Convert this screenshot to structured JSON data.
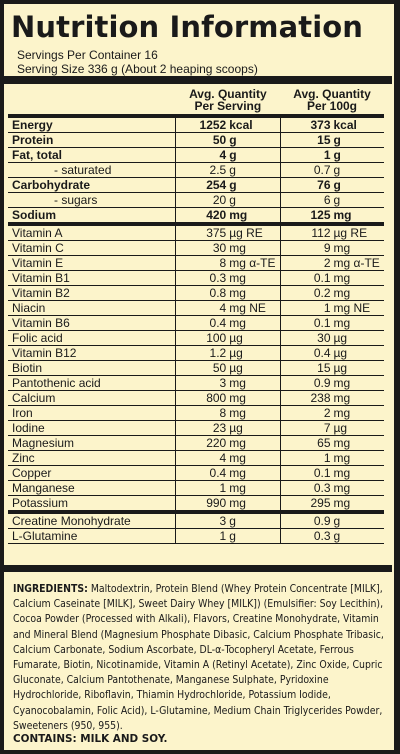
{
  "title": "Nutrition Information",
  "servings_per_container": "Servings Per Container 16",
  "serving_size": "Serving Size 336 g (About 2 heaping scoops)",
  "columns": {
    "per_serving_l1": "Avg. Quantity",
    "per_serving_l2": "Per Serving",
    "per_100g_l1": "Avg. Quantity",
    "per_100g_l2": "Per 100g"
  },
  "rows": [
    {
      "name": "Energy",
      "s_val": "1252",
      "s_unit": "kcal",
      "h_val": "373",
      "h_unit": "kcal",
      "bold": true,
      "sub": false,
      "end": false
    },
    {
      "name": "Protein",
      "s_val": "50",
      "s_unit": "g",
      "h_val": "15",
      "h_unit": "g",
      "bold": true,
      "sub": false,
      "end": false
    },
    {
      "name": "Fat, total",
      "s_val": "4",
      "s_unit": "g",
      "h_val": "1",
      "h_unit": "g",
      "bold": true,
      "sub": false,
      "end": false
    },
    {
      "name": "- saturated",
      "s_val": "2.5",
      "s_unit": "g",
      "h_val": "0.7",
      "h_unit": "g",
      "bold": false,
      "sub": true,
      "end": false
    },
    {
      "name": "Carbohydrate",
      "s_val": "254",
      "s_unit": "g",
      "h_val": "76",
      "h_unit": "g",
      "bold": true,
      "sub": false,
      "end": false
    },
    {
      "name": "- sugars",
      "s_val": "20",
      "s_unit": "g",
      "h_val": "6",
      "h_unit": "g",
      "bold": false,
      "sub": true,
      "end": false
    },
    {
      "name": "Sodium",
      "s_val": "420",
      "s_unit": "mg",
      "h_val": "125",
      "h_unit": "mg",
      "bold": true,
      "sub": false,
      "end": true
    },
    {
      "name": "Vitamin A",
      "s_val": "375",
      "s_unit": "µg RE",
      "h_val": "112",
      "h_unit": "µg RE",
      "bold": false,
      "sub": false,
      "end": false
    },
    {
      "name": "Vitamin C",
      "s_val": "30",
      "s_unit": "mg",
      "h_val": "9",
      "h_unit": "mg",
      "bold": false,
      "sub": false,
      "end": false
    },
    {
      "name": "Vitamin E",
      "s_val": "8",
      "s_unit": "mg α-TE",
      "h_val": "2",
      "h_unit": "mg α-TE",
      "bold": false,
      "sub": false,
      "end": false
    },
    {
      "name": "Vitamin B1",
      "s_val": "0.3",
      "s_unit": "mg",
      "h_val": "0.1",
      "h_unit": "mg",
      "bold": false,
      "sub": false,
      "end": false
    },
    {
      "name": "Vitamin B2",
      "s_val": "0.8",
      "s_unit": "mg",
      "h_val": "0.2",
      "h_unit": "mg",
      "bold": false,
      "sub": false,
      "end": false
    },
    {
      "name": "Niacin",
      "s_val": "4",
      "s_unit": "mg NE",
      "h_val": "1",
      "h_unit": "mg NE",
      "bold": false,
      "sub": false,
      "end": false
    },
    {
      "name": "Vitamin B6",
      "s_val": "0.4",
      "s_unit": "mg",
      "h_val": "0.1",
      "h_unit": "mg",
      "bold": false,
      "sub": false,
      "end": false
    },
    {
      "name": "Folic acid",
      "s_val": "100",
      "s_unit": "µg",
      "h_val": "30",
      "h_unit": "µg",
      "bold": false,
      "sub": false,
      "end": false
    },
    {
      "name": "Vitamin B12",
      "s_val": "1.2",
      "s_unit": "µg",
      "h_val": "0.4",
      "h_unit": "µg",
      "bold": false,
      "sub": false,
      "end": false
    },
    {
      "name": "Biotin",
      "s_val": "50",
      "s_unit": "µg",
      "h_val": "15",
      "h_unit": "µg",
      "bold": false,
      "sub": false,
      "end": false
    },
    {
      "name": "Pantothenic acid",
      "s_val": "3",
      "s_unit": "mg",
      "h_val": "0.9",
      "h_unit": "mg",
      "bold": false,
      "sub": false,
      "end": false
    },
    {
      "name": "Calcium",
      "s_val": "800",
      "s_unit": "mg",
      "h_val": "238",
      "h_unit": "mg",
      "bold": false,
      "sub": false,
      "end": false
    },
    {
      "name": "Iron",
      "s_val": "8",
      "s_unit": "mg",
      "h_val": "2",
      "h_unit": "mg",
      "bold": false,
      "sub": false,
      "end": false
    },
    {
      "name": "Iodine",
      "s_val": "23",
      "s_unit": "µg",
      "h_val": "7",
      "h_unit": "µg",
      "bold": false,
      "sub": false,
      "end": false
    },
    {
      "name": "Magnesium",
      "s_val": "220",
      "s_unit": "mg",
      "h_val": "65",
      "h_unit": "mg",
      "bold": false,
      "sub": false,
      "end": false
    },
    {
      "name": "Zinc",
      "s_val": "4",
      "s_unit": "mg",
      "h_val": "1",
      "h_unit": "mg",
      "bold": false,
      "sub": false,
      "end": false
    },
    {
      "name": "Copper",
      "s_val": "0.4",
      "s_unit": "mg",
      "h_val": "0.1",
      "h_unit": "mg",
      "bold": false,
      "sub": false,
      "end": false
    },
    {
      "name": "Manganese",
      "s_val": "1",
      "s_unit": "mg",
      "h_val": "0.3",
      "h_unit": "mg",
      "bold": false,
      "sub": false,
      "end": false
    },
    {
      "name": "Potassium",
      "s_val": "990",
      "s_unit": "mg",
      "h_val": "295",
      "h_unit": "mg",
      "bold": false,
      "sub": false,
      "end": true
    },
    {
      "name": "Creatine Monohydrate",
      "s_val": "3",
      "s_unit": "g",
      "h_val": "0.9",
      "h_unit": "g",
      "bold": false,
      "sub": false,
      "end": false
    },
    {
      "name": "L-Glutamine",
      "s_val": "1",
      "s_unit": "g",
      "h_val": "0.3",
      "h_unit": "g",
      "bold": false,
      "sub": false,
      "end": false
    }
  ],
  "ingredients_label": "INGREDIENTS:",
  "ingredients_text": "Maltodextrin, Protein Blend (Whey Protein Concentrate [MILK], Calcium Caseinate [MILK], Sweet Dairy Whey [MILK]) (Emulsifier: Soy Lecithin), Cocoa Powder (Processed with Alkali), Flavors, Creatine Monohydrate, Vitamin and Mineral Blend (Magnesium Phosphate Dibasic, Calcium Phosphate Tribasic, Calcium Carbonate, Sodium Ascorbate, DL-α-Tocopheryl Acetate, Ferrous Fumarate, Biotin, Nicotinamide, Vitamin A (Retinyl Acetate), Zinc Oxide, Cupric Gluconate, Calcium Pantothenate, Manganese Sulphate, Pyridoxine Hydrochloride, Riboflavin, Thiamin Hydrochloride, Potassium Iodide, Cyanocobalamin, Folic Acid), L-Glutamine, Medium Chain Triglycerides Powder, Sweeteners (950, 955).",
  "contains": "CONTAINS: MILK AND SOY."
}
